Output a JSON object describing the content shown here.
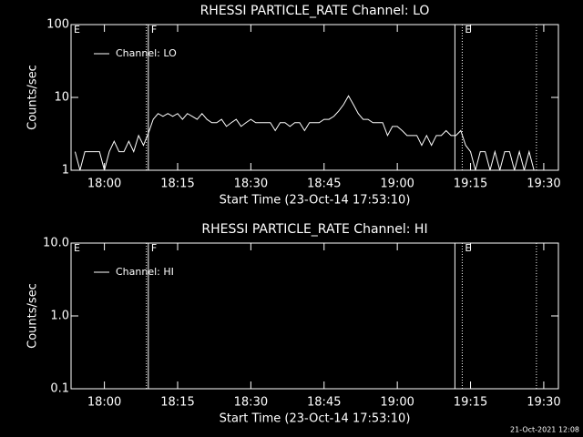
{
  "chart_data": [
    {
      "type": "line",
      "title": "RHESSI PARTICLE_RATE Channel: LO",
      "xlabel": "Start Time (23-Oct-14 17:53:10)",
      "ylabel": "Counts/sec",
      "ylog": true,
      "ylim": [
        1,
        100
      ],
      "yticks": [
        1,
        10,
        100
      ],
      "xlim": [
        1073.17,
        1173
      ],
      "xticks": [
        {
          "value": 1080,
          "label": "18:00"
        },
        {
          "value": 1095,
          "label": "18:15"
        },
        {
          "value": 1110,
          "label": "18:30"
        },
        {
          "value": 1125,
          "label": "18:45"
        },
        {
          "value": 1140,
          "label": "19:00"
        },
        {
          "value": 1155,
          "label": "19:15"
        },
        {
          "value": 1170,
          "label": "19:30"
        }
      ],
      "x": [
        1074,
        1075,
        1076,
        1077,
        1078,
        1079,
        1080,
        1081,
        1082,
        1083,
        1084,
        1085,
        1086,
        1087,
        1088,
        1089,
        1090,
        1091,
        1092,
        1093,
        1094,
        1095,
        1096,
        1097,
        1098,
        1099,
        1100,
        1101,
        1102,
        1103,
        1104,
        1105,
        1106,
        1107,
        1108,
        1109,
        1110,
        1111,
        1112,
        1113,
        1114,
        1115,
        1116,
        1117,
        1118,
        1119,
        1120,
        1121,
        1122,
        1123,
        1124,
        1125,
        1126,
        1127,
        1128,
        1129,
        1130,
        1131,
        1132,
        1133,
        1134,
        1135,
        1136,
        1137,
        1138,
        1139,
        1140,
        1141,
        1142,
        1143,
        1144,
        1145,
        1146,
        1147,
        1148,
        1149,
        1150,
        1151,
        1152,
        1153,
        1154,
        1155,
        1156,
        1157,
        1158,
        1159,
        1160,
        1161,
        1162,
        1163,
        1164,
        1165,
        1166,
        1167,
        1168
      ],
      "series": [
        {
          "name": "Channel: LO",
          "color": "#ffffff",
          "values": [
            1.8,
            1.0,
            1.8,
            1.8,
            1.8,
            1.8,
            1.0,
            1.8,
            2.5,
            1.8,
            1.8,
            2.5,
            1.8,
            3.0,
            2.2,
            3.2,
            5.0,
            6.0,
            5.5,
            6.0,
            5.5,
            6.0,
            5.0,
            6.0,
            5.5,
            5.0,
            6.0,
            5.0,
            4.5,
            4.5,
            5.0,
            4.0,
            4.5,
            5.0,
            4.0,
            4.5,
            5.0,
            4.5,
            4.5,
            4.5,
            4.5,
            3.5,
            4.5,
            4.5,
            4.0,
            4.5,
            4.5,
            3.5,
            4.5,
            4.5,
            4.5,
            5.0,
            5.0,
            5.5,
            6.5,
            8.0,
            10.5,
            8.0,
            6.0,
            5.0,
            5.0,
            4.5,
            4.5,
            4.5,
            3.0,
            4.0,
            4.0,
            3.5,
            3.0,
            3.0,
            3.0,
            2.2,
            3.0,
            2.2,
            3.0,
            3.0,
            3.5,
            3.0,
            3.0,
            3.5,
            2.2,
            1.8,
            1.0,
            1.8,
            1.8,
            1.0,
            1.8,
            1.0,
            1.8,
            1.8,
            1.0,
            1.8,
            1.0,
            1.8,
            1.0
          ]
        }
      ],
      "vlines": [
        {
          "x": 1088.6,
          "style": "dotted"
        },
        {
          "x": 1089,
          "style": "solid"
        },
        {
          "x": 1151.8,
          "style": "solid"
        },
        {
          "x": 1153.3,
          "style": "dotted"
        },
        {
          "x": 1168.5,
          "style": "dotted"
        }
      ],
      "annotations": [
        {
          "text": "E",
          "x": 1073.17
        },
        {
          "text": "F",
          "x": 1089
        },
        {
          "text": "E",
          "x": 1153.3
        }
      ]
    },
    {
      "type": "line",
      "title": "RHESSI PARTICLE_RATE Channel: HI",
      "xlabel": "Start Time (23-Oct-14 17:53:10)",
      "ylabel": "Counts/sec",
      "ylog": true,
      "ylim": [
        0.1,
        10
      ],
      "yticks": [
        {
          "value": 0.1,
          "label": "0.1"
        },
        {
          "value": 1,
          "label": "1.0"
        },
        {
          "value": 10,
          "label": "10.0"
        }
      ],
      "xlim": [
        1073.17,
        1173
      ],
      "xticks": [
        {
          "value": 1080,
          "label": "18:00"
        },
        {
          "value": 1095,
          "label": "18:15"
        },
        {
          "value": 1110,
          "label": "18:30"
        },
        {
          "value": 1125,
          "label": "18:45"
        },
        {
          "value": 1140,
          "label": "19:00"
        },
        {
          "value": 1155,
          "label": "19:15"
        },
        {
          "value": 1170,
          "label": "19:30"
        }
      ],
      "x": [],
      "series": [
        {
          "name": "Channel: HI",
          "color": "#ffffff",
          "values": []
        }
      ],
      "vlines": [
        {
          "x": 1088.6,
          "style": "dotted"
        },
        {
          "x": 1089,
          "style": "solid"
        },
        {
          "x": 1151.8,
          "style": "solid"
        },
        {
          "x": 1153.3,
          "style": "dotted"
        },
        {
          "x": 1168.5,
          "style": "dotted"
        }
      ],
      "annotations": [
        {
          "text": "E",
          "x": 1073.17
        },
        {
          "text": "F",
          "x": 1089
        },
        {
          "text": "E",
          "x": 1153.3
        }
      ]
    }
  ],
  "footer": "21-Oct-2021 12:08"
}
